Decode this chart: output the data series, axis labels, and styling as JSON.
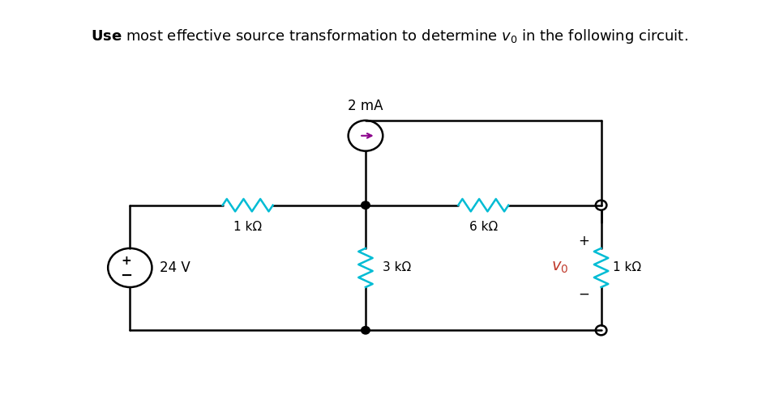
{
  "title_text": "Use most effective source transformation to determine $v_0$ in the following circuit.",
  "title_bold_part": "Use",
  "bg_color": "#ffffff",
  "wire_color": "#000000",
  "resistor_color_cyan": "#00bcd4",
  "resistor_color_black": "#000000",
  "vo_color": "#c0392b",
  "current_source_label": "2 mA",
  "voltage_source_label": "24 V",
  "r1_label": "1 kΩ",
  "r2_label": "6 kΩ",
  "r3_label": "3 kΩ",
  "r4_label": "1 kΩ",
  "vo_label": "v₀",
  "plus_label": "+",
  "minus_label": "−"
}
